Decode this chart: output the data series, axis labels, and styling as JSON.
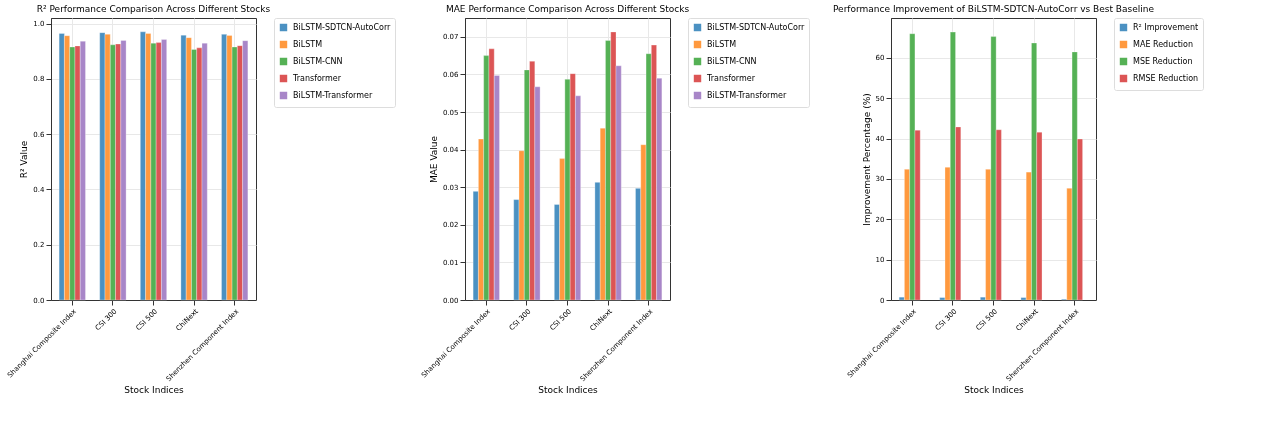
{
  "chart_data": [
    {
      "type": "bar",
      "title": "R² Performance Comparison Across Different Stocks",
      "xlabel": "Stock Indices",
      "ylabel": "R² Value",
      "categories": [
        "Shanghai Composite Index",
        "CSI 300",
        "CSI 500",
        "ChiNext",
        "Shenzhen Component Index"
      ],
      "series": [
        {
          "name": "BiLSTM-SDTCN-AutoCorr",
          "color": "#4b91c2",
          "values": [
            0.964,
            0.967,
            0.97,
            0.958,
            0.961
          ]
        },
        {
          "name": "BiLSTM",
          "color": "#ff993e",
          "values": [
            0.956,
            0.961,
            0.964,
            0.949,
            0.957
          ]
        },
        {
          "name": "BiLSTM-CNN",
          "color": "#55b155",
          "values": [
            0.915,
            0.923,
            0.929,
            0.906,
            0.915
          ]
        },
        {
          "name": "Transformer",
          "color": "#dc5555",
          "values": [
            0.919,
            0.926,
            0.931,
            0.912,
            0.92
          ]
        },
        {
          "name": "BiLSTM-Transformer",
          "color": "#a886c8",
          "values": [
            0.936,
            0.939,
            0.942,
            0.929,
            0.938
          ]
        }
      ],
      "ylim": [
        0,
        1.02
      ],
      "yticks": [
        {
          "value": 0,
          "label": "0.0"
        },
        0.2,
        0.4,
        0.6,
        0.8,
        {
          "value": 1,
          "label": "1.0"
        }
      ],
      "grid": true,
      "legend": "top right"
    },
    {
      "type": "bar",
      "title": "MAE Performance Comparison Across Different Stocks",
      "xlabel": "Stock Indices",
      "ylabel": "MAE Value",
      "categories": [
        "Shanghai Composite Index",
        "CSI 300",
        "CSI 500",
        "ChiNext",
        "Shenzhen Component Index"
      ],
      "series": [
        {
          "name": "BiLSTM-SDTCN-AutoCorr",
          "color": "#4b91c2",
          "values": [
            0.0289,
            0.0267,
            0.0254,
            0.0313,
            0.0297
          ]
        },
        {
          "name": "BiLSTM",
          "color": "#ff993e",
          "values": [
            0.0428,
            0.0397,
            0.0376,
            0.0457,
            0.0413
          ]
        },
        {
          "name": "BiLSTM-CNN",
          "color": "#55b155",
          "values": [
            0.065,
            0.0612,
            0.0587,
            0.069,
            0.0655
          ]
        },
        {
          "name": "Transformer",
          "color": "#dc5555",
          "values": [
            0.0668,
            0.0635,
            0.0602,
            0.0713,
            0.0678
          ]
        },
        {
          "name": "BiLSTM-Transformer",
          "color": "#a886c8",
          "values": [
            0.0597,
            0.0567,
            0.0543,
            0.0623,
            0.059
          ]
        }
      ],
      "ylim": [
        0,
        0.075
      ],
      "yticks": [
        {
          "value": 0,
          "label": "0.00"
        },
        {
          "value": 0.01,
          "label": "0.01"
        },
        {
          "value": 0.02,
          "label": "0.02"
        },
        {
          "value": 0.03,
          "label": "0.03"
        },
        {
          "value": 0.04,
          "label": "0.04"
        },
        {
          "value": 0.05,
          "label": "0.05"
        },
        {
          "value": 0.06,
          "label": "0.06"
        },
        {
          "value": 0.07,
          "label": "0.07"
        }
      ],
      "grid": true,
      "legend": "top right"
    },
    {
      "type": "bar",
      "title": "Performance Improvement of BiLSTM-SDTCN-AutoCorr vs Best Baseline",
      "xlabel": "Stock Indices",
      "ylabel": "Improvement Percentage (%)",
      "categories": [
        "Shanghai Composite Index",
        "CSI 300",
        "CSI 500",
        "ChiNext",
        "Shenzhen Component Index"
      ],
      "series": [
        {
          "name": "R² Improvement",
          "color": "#4b91c2",
          "values": [
            0.7,
            0.6,
            0.7,
            0.6,
            0.2
          ]
        },
        {
          "name": "MAE Reduction",
          "color": "#ff993e",
          "values": [
            32.4,
            32.9,
            32.4,
            31.7,
            27.7
          ]
        },
        {
          "name": "MSE Reduction",
          "color": "#55b155",
          "values": [
            66.0,
            66.4,
            65.3,
            63.7,
            61.5
          ]
        },
        {
          "name": "RMSE Reduction",
          "color": "#dc5555",
          "values": [
            42.1,
            42.9,
            42.2,
            41.6,
            39.9
          ]
        }
      ],
      "ylim": [
        0,
        69.9
      ],
      "yticks": [
        0,
        10,
        20,
        30,
        40,
        50,
        60
      ],
      "grid": true,
      "legend": "top right"
    }
  ]
}
